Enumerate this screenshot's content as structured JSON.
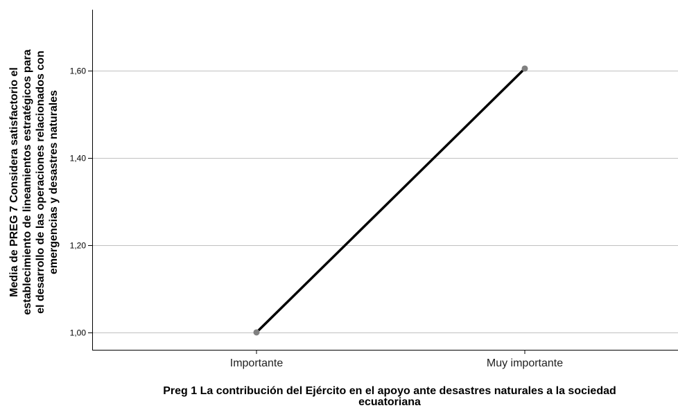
{
  "chart_data": {
    "type": "line",
    "categories": [
      "Importante",
      "Muy importante"
    ],
    "series": [
      {
        "values": [
          1.0,
          1.605
        ]
      }
    ],
    "ylim": [
      0.96,
      1.74
    ],
    "yticks": [
      1.0,
      1.2,
      1.4,
      1.6
    ],
    "ytick_labels": [
      "1,00",
      "1,20",
      "1,40",
      "1,60"
    ],
    "xlabel_lines": [
      "Preg 1 La contribución del Ejército en el apoyo ante desastres naturales a la sociedad",
      "ecuatoriana"
    ],
    "ylabel_lines": [
      "Media de PREG 7 Considera satisfactorio el",
      "establecimiento de lineamientos estratégicos para",
      "el desarrollo de las operaciones relacionados con",
      "emergencias y desastres naturales"
    ],
    "grid": true,
    "line_color": "#000000",
    "marker_color": "#808080",
    "grid_color": "#c0c0c0"
  }
}
